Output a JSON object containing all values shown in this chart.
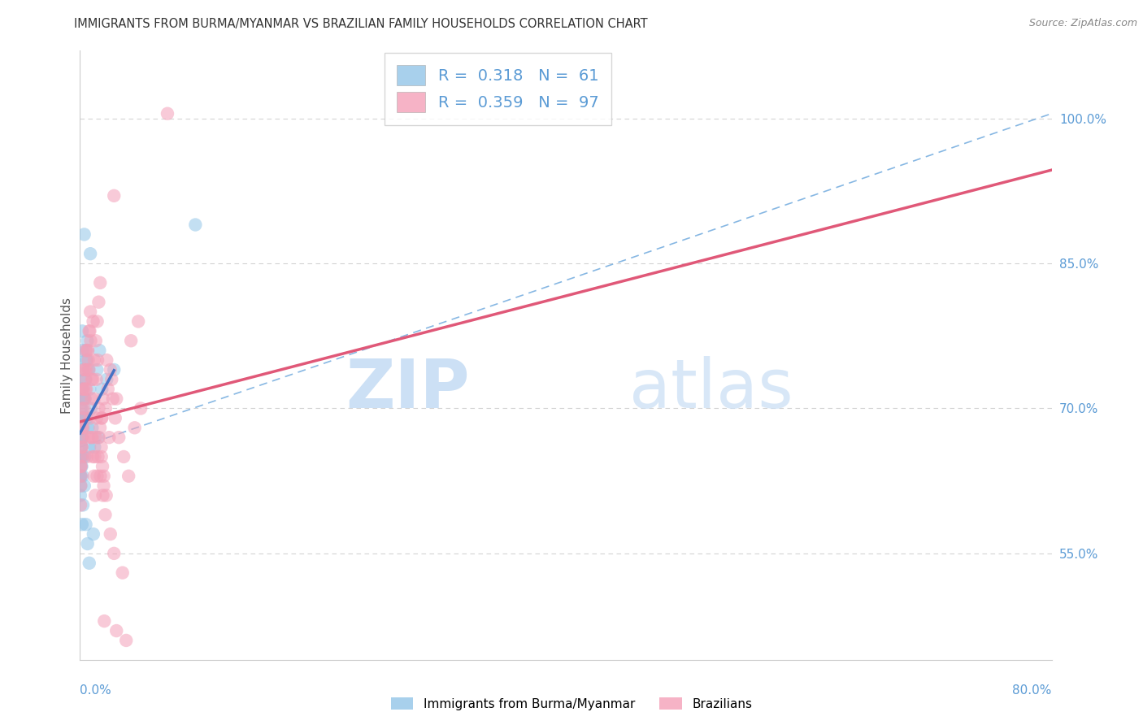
{
  "title": "IMMIGRANTS FROM BURMA/MYANMAR VS BRAZILIAN FAMILY HOUSEHOLDS CORRELATION CHART",
  "source": "Source: ZipAtlas.com",
  "ylabel": "Family Households",
  "blue_R": "0.318",
  "blue_N": "61",
  "pink_R": "0.359",
  "pink_N": "97",
  "blue_color": "#92c5e8",
  "pink_color": "#f4a0b8",
  "blue_label": "Immigrants from Burma/Myanmar",
  "pink_label": "Brazilians",
  "xlim": [
    0.0,
    80.0
  ],
  "ylim": [
    44.0,
    107.0
  ],
  "right_yticks": [
    55.0,
    70.0,
    85.0,
    100.0
  ],
  "right_ytick_labels": [
    "55.0%",
    "70.0%",
    "85.0%",
    "100.0%"
  ],
  "axis_label_color": "#5b9bd5",
  "grid_color": "#d3d3d3",
  "trend_blue_color": "#4472c4",
  "trend_pink_color": "#e05878",
  "ref_line_color": "#7ab0e0",
  "watermark_zip_color": "#cce0f5",
  "watermark_atlas_color": "#cce0f5",
  "title_fontsize": 10.5,
  "legend_value_color": "#5b9bd5",
  "blue_x": [
    0.18,
    0.52,
    0.35,
    0.85,
    0.04,
    0.22,
    0.06,
    0.12,
    0.28,
    0.08,
    0.14,
    0.32,
    0.44,
    0.58,
    0.02,
    0.1,
    0.2,
    0.3,
    0.4,
    0.5,
    0.6,
    0.7,
    0.8,
    0.9,
    1.0,
    1.2,
    1.4,
    1.6,
    0.05,
    0.07,
    0.09,
    0.11,
    0.13,
    0.15,
    0.17,
    0.19,
    0.21,
    0.23,
    0.25,
    0.27,
    0.03,
    0.06,
    0.08,
    0.12,
    0.16,
    0.24,
    0.36,
    0.48,
    0.62,
    0.76,
    1.1,
    2.2,
    2.8,
    1.8,
    0.42,
    0.54,
    0.66,
    0.78,
    9.5,
    1.5,
    0.38
  ],
  "blue_y": [
    78.0,
    76.0,
    88.0,
    86.0,
    65.0,
    68.0,
    70.0,
    72.0,
    69.0,
    66.0,
    64.0,
    71.0,
    73.0,
    75.0,
    63.0,
    67.0,
    69.0,
    71.0,
    73.0,
    75.0,
    77.0,
    74.0,
    72.0,
    70.0,
    68.0,
    66.0,
    74.0,
    76.0,
    62.0,
    64.0,
    66.0,
    68.0,
    70.0,
    72.0,
    74.0,
    76.0,
    63.0,
    65.0,
    67.0,
    69.0,
    61.0,
    63.0,
    65.0,
    67.0,
    58.0,
    60.0,
    62.0,
    58.0,
    56.0,
    54.0,
    57.0,
    73.0,
    74.0,
    72.0,
    71.0,
    69.0,
    68.0,
    66.0,
    89.0,
    67.0,
    65.0
  ],
  "pink_x": [
    0.1,
    0.22,
    0.34,
    0.46,
    0.58,
    0.7,
    0.82,
    0.94,
    1.06,
    1.18,
    1.3,
    1.42,
    1.54,
    1.66,
    1.78,
    1.9,
    0.05,
    0.15,
    0.25,
    0.35,
    0.45,
    0.55,
    0.65,
    0.75,
    0.85,
    0.95,
    1.05,
    1.15,
    1.25,
    1.35,
    1.45,
    1.55,
    1.65,
    1.75,
    1.85,
    1.95,
    2.1,
    2.3,
    2.5,
    2.7,
    2.9,
    3.2,
    3.6,
    4.0,
    4.5,
    5.0,
    7.2,
    0.08,
    0.12,
    0.18,
    0.28,
    0.38,
    0.48,
    0.68,
    0.88,
    1.08,
    1.28,
    1.48,
    1.68,
    1.88,
    2.08,
    2.5,
    2.8,
    3.5,
    4.2,
    0.04,
    0.06,
    0.09,
    0.13,
    0.17,
    0.21,
    0.29,
    0.41,
    0.61,
    0.81,
    1.01,
    1.21,
    1.41,
    2.2,
    2.6,
    3.0,
    1.8,
    2.4,
    0.52,
    0.74,
    0.96,
    1.16,
    1.36,
    1.56,
    1.76,
    1.96,
    2.16,
    2.8,
    4.8,
    2.0,
    3.0,
    3.8
  ],
  "pink_y": [
    68.0,
    72.0,
    74.0,
    76.0,
    65.0,
    67.0,
    69.0,
    71.0,
    73.0,
    75.0,
    77.0,
    79.0,
    81.0,
    83.0,
    69.0,
    71.0,
    64.0,
    66.0,
    68.0,
    70.0,
    72.0,
    74.0,
    76.0,
    78.0,
    80.0,
    67.0,
    65.0,
    63.0,
    61.0,
    73.0,
    75.0,
    70.0,
    68.0,
    66.0,
    64.0,
    62.0,
    70.0,
    72.0,
    74.0,
    71.0,
    69.0,
    67.0,
    65.0,
    63.0,
    68.0,
    70.0,
    100.5,
    63.0,
    65.0,
    67.0,
    69.0,
    71.0,
    73.0,
    75.0,
    77.0,
    79.0,
    67.0,
    65.0,
    63.0,
    61.0,
    59.0,
    57.0,
    55.0,
    53.0,
    77.0,
    60.0,
    62.0,
    64.0,
    66.0,
    68.0,
    70.0,
    72.0,
    74.0,
    76.0,
    78.0,
    67.0,
    65.0,
    63.0,
    75.0,
    73.0,
    71.0,
    69.0,
    67.0,
    72.0,
    74.0,
    73.0,
    71.0,
    69.0,
    67.0,
    65.0,
    63.0,
    61.0,
    92.0,
    79.0,
    48.0,
    47.0,
    46.0
  ]
}
